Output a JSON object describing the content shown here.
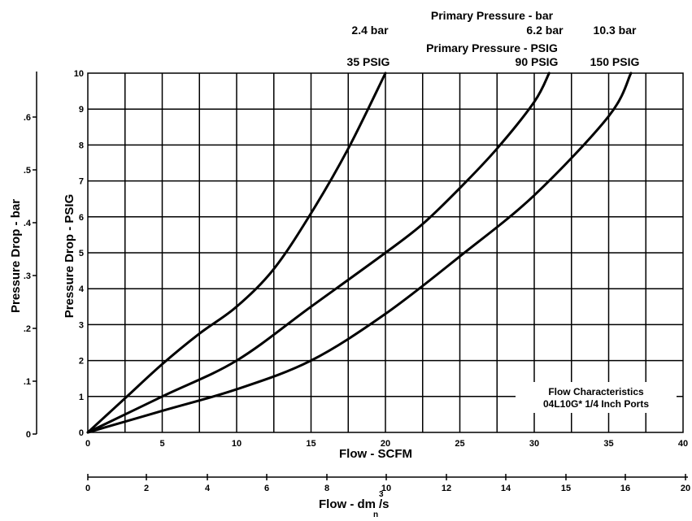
{
  "chart_data": {
    "type": "line",
    "xlabel": "Flow - SCFM",
    "ylabel": "Pressure Drop - PSIG",
    "xlim": [
      0,
      40
    ],
    "ylim": [
      0,
      10
    ],
    "x_ticks": [
      "0",
      "5",
      "10",
      "15",
      "20",
      "25",
      "30",
      "35",
      "40"
    ],
    "y_ticks": [
      "0",
      "1",
      "2",
      "3",
      "4",
      "5",
      "6",
      "7",
      "8",
      "9",
      "10"
    ],
    "grid": true,
    "secondary_y": {
      "label": "Pressure Drop - bar",
      "ticks": [
        "0",
        ".1",
        ".2",
        ".3",
        ".4",
        ".5",
        ".6"
      ]
    },
    "secondary_x": {
      "label": "Flow - dm",
      "label_superscript": "3",
      "label_subscript": "n",
      "label_suffix": "/s",
      "ticks": [
        "0",
        "2",
        "4",
        "6",
        "8",
        "10",
        "12",
        "14",
        "15",
        "16",
        "20"
      ]
    },
    "top_labels": {
      "bar_title": "Primary Pressure - bar",
      "psig_title": "Primary Pressure - PSIG"
    },
    "series": [
      {
        "name_bar": "2.4 bar",
        "name_psig": "35 PSIG",
        "x": [
          0,
          2.5,
          5,
          7.5,
          10,
          12.5,
          15,
          17.5,
          20
        ],
        "y": [
          0,
          0.95,
          1.9,
          2.75,
          3.5,
          4.55,
          6.1,
          7.9,
          10
        ]
      },
      {
        "name_bar": "6.2 bar",
        "name_psig": "90 PSIG",
        "x": [
          0,
          5,
          10,
          15,
          20,
          22.5,
          25,
          27.5,
          30,
          31
        ],
        "y": [
          0,
          1,
          2,
          3.5,
          5,
          5.8,
          6.8,
          7.9,
          9.2,
          10
        ]
      },
      {
        "name_bar": "10.3 bar",
        "name_psig": "150 PSIG",
        "x": [
          0,
          5,
          10,
          15,
          20,
          25,
          30,
          35,
          36.5
        ],
        "y": [
          0,
          0.6,
          1.2,
          2,
          3.3,
          4.9,
          6.6,
          8.8,
          10
        ]
      }
    ],
    "annotation": {
      "line1": "Flow Characteristics",
      "line2": "04L10G* 1/4 Inch Ports"
    }
  }
}
